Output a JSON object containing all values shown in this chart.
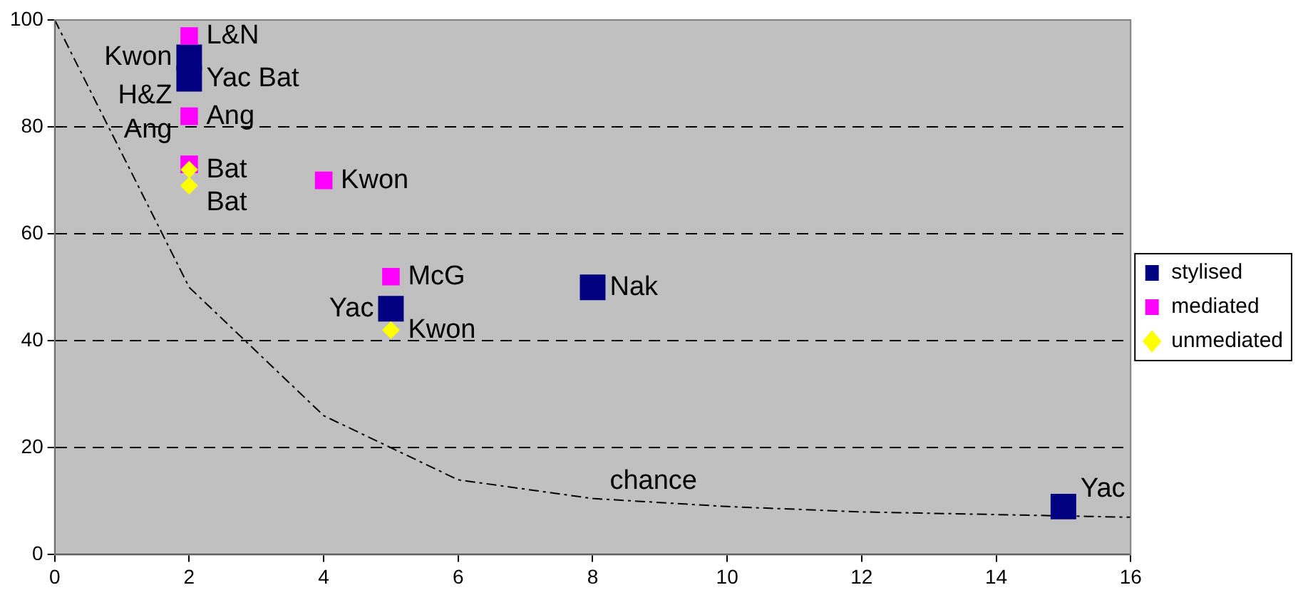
{
  "chart_data": {
    "type": "scatter",
    "series": [
      {
        "name": "stylised",
        "color": "#000080",
        "marker": "square",
        "x": [
          2,
          2,
          5,
          8,
          15
        ],
        "values": [
          93,
          89,
          46,
          50,
          9
        ]
      },
      {
        "name": "mediated",
        "color": "#ff00ff",
        "marker": "square",
        "x": [
          2,
          2,
          2,
          4,
          5
        ],
        "values": [
          97,
          82,
          73,
          70,
          52
        ]
      },
      {
        "name": "unmediated",
        "color": "#ffff00",
        "marker": "diamond",
        "x": [
          2,
          2,
          5
        ],
        "values": [
          72,
          69,
          42
        ]
      },
      {
        "type": "line",
        "color": "#000000",
        "marker": "none",
        "line_style": "dashed",
        "x": [
          0,
          2,
          4,
          5,
          6,
          8,
          10,
          12,
          16
        ],
        "values": [
          100,
          50,
          26,
          20,
          14,
          10.5,
          9,
          8,
          7
        ]
      }
    ],
    "xlim": [
      0,
      16
    ],
    "xticks": [
      0,
      2,
      4,
      6,
      8,
      10,
      12,
      14,
      16
    ],
    "ylim": [
      0,
      100
    ],
    "yticks": [
      0,
      20,
      40,
      60,
      80,
      100
    ],
    "grid": "y",
    "legend": "right",
    "annotations": [
      {
        "text": "L&N",
        "x": 2,
        "y": 97
      },
      {
        "text": "Yac Bat",
        "x": 2,
        "y": 89
      },
      {
        "text": "Kwon",
        "x": 2,
        "y": 93
      },
      {
        "text": "H&Z",
        "x": 2,
        "y": 89
      },
      {
        "text": "Ang",
        "x": 2,
        "y": 82
      },
      {
        "text": "Bat",
        "x": 2,
        "y": 72
      },
      {
        "text": "Ang",
        "x": 2,
        "y": 73
      },
      {
        "text": "Bat",
        "x": 2,
        "y": 69
      },
      {
        "text": "Kwon",
        "x": 4,
        "y": 70
      },
      {
        "text": "McG",
        "x": 5,
        "y": 52
      },
      {
        "text": "Kwon",
        "x": 5,
        "y": 42
      },
      {
        "text": "Yac",
        "x": 5,
        "y": 46
      },
      {
        "text": "Nak",
        "x": 8,
        "y": 50
      },
      {
        "text": "chance",
        "x": 8,
        "y": 10.5
      },
      {
        "text": "Yac",
        "x": 15,
        "y": 9
      }
    ]
  }
}
